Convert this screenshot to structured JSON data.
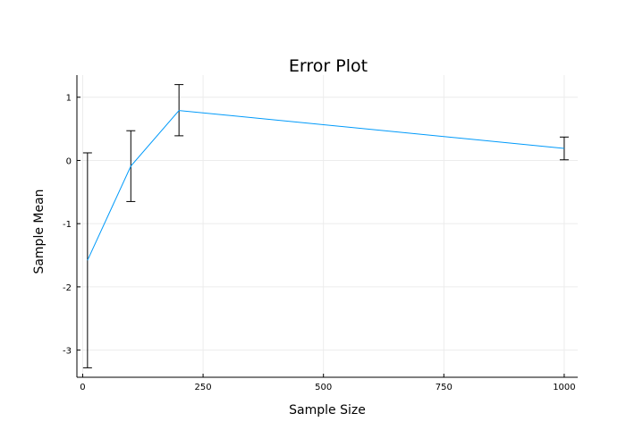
{
  "chart_data": {
    "type": "line",
    "title": "Error Plot",
    "xlabel": "Sample Size",
    "ylabel": "Sample Mean",
    "xlim": [
      -12,
      1028
    ],
    "ylim": [
      -3.43,
      1.35
    ],
    "xticks": [
      0,
      250,
      500,
      750,
      1000
    ],
    "yticks": [
      -3,
      -2,
      -1,
      0,
      1
    ],
    "xtick_labels": [
      "0",
      "250",
      "500",
      "750",
      "1000"
    ],
    "ytick_labels": [
      "-3",
      "-2",
      "-1",
      "0",
      "1"
    ],
    "grid": true,
    "legend": false,
    "series": [
      {
        "x": [
          10,
          100,
          200,
          1000
        ],
        "y": [
          -1.58,
          -0.09,
          0.79,
          0.19
        ],
        "error_low": [
          -3.28,
          -0.65,
          0.39,
          0.01
        ],
        "error_high": [
          0.12,
          0.47,
          1.2,
          0.37
        ],
        "color": "#009AFA"
      }
    ],
    "errorbar_color": "#000000",
    "grid_color": "#ececec"
  }
}
